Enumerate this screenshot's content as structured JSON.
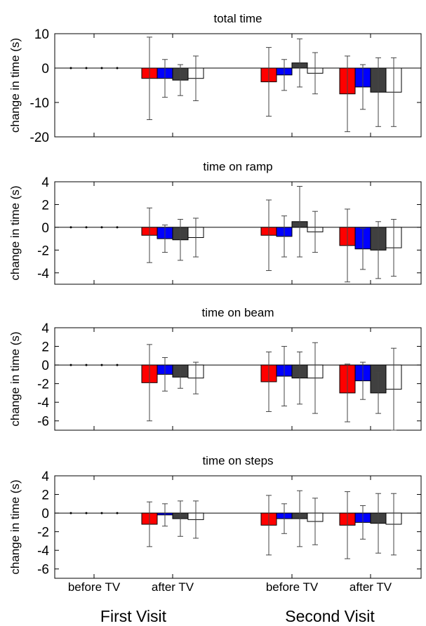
{
  "figure": {
    "x_tick_labels": [
      "before TV",
      "after TV",
      "before TV",
      "after TV"
    ],
    "group_labels": [
      "First Visit",
      "Second Visit"
    ],
    "series_colors": [
      "#ff0000",
      "#0000ff",
      "#404040",
      "#ffffff"
    ]
  },
  "chart_data": [
    {
      "type": "bar",
      "title": "total time",
      "ylabel": "change in time (s)",
      "ylim": [
        -20,
        10
      ],
      "yticks": [
        -20,
        -10,
        0,
        10
      ],
      "categories": [
        "before TV",
        "after TV",
        "before TV",
        "after TV"
      ],
      "series": [
        {
          "values": [
            0,
            -3.0,
            -4.0,
            -7.5
          ],
          "error": [
            0,
            12.0,
            10.0,
            11.0
          ]
        },
        {
          "values": [
            0,
            -3.0,
            -2.0,
            -5.5
          ],
          "error": [
            0,
            5.5,
            4.5,
            6.5
          ]
        },
        {
          "values": [
            0,
            -3.5,
            1.5,
            -7.0
          ],
          "error": [
            0,
            4.5,
            7.0,
            10.0
          ]
        },
        {
          "values": [
            0,
            -3.0,
            -1.5,
            -7.0
          ],
          "error": [
            0,
            6.5,
            6.0,
            10.0
          ]
        }
      ]
    },
    {
      "type": "bar",
      "title": "time on ramp",
      "ylabel": "change in time (s)",
      "ylim": [
        -5,
        4
      ],
      "yticks": [
        -4,
        -2,
        0,
        2,
        4
      ],
      "categories": [
        "before TV",
        "after TV",
        "before TV",
        "after TV"
      ],
      "series": [
        {
          "values": [
            0,
            -0.7,
            -0.7,
            -1.6
          ],
          "error": [
            0,
            2.4,
            3.1,
            3.2
          ]
        },
        {
          "values": [
            0,
            -1.0,
            -0.8,
            -1.9
          ],
          "error": [
            0,
            1.2,
            1.8,
            1.8
          ]
        },
        {
          "values": [
            0,
            -1.1,
            0.5,
            -2.0
          ],
          "error": [
            0,
            1.8,
            3.1,
            2.5
          ]
        },
        {
          "values": [
            0,
            -0.9,
            -0.4,
            -1.8
          ],
          "error": [
            0,
            1.7,
            1.8,
            2.5
          ]
        }
      ]
    },
    {
      "type": "bar",
      "title": "time on beam",
      "ylabel": "change in time (s)",
      "ylim": [
        -7,
        4
      ],
      "yticks": [
        -6,
        -4,
        -2,
        0,
        2,
        4
      ],
      "categories": [
        "before TV",
        "after TV",
        "before TV",
        "after TV"
      ],
      "series": [
        {
          "values": [
            0,
            -1.9,
            -1.8,
            -3.0
          ],
          "error": [
            0,
            4.1,
            3.2,
            3.1
          ]
        },
        {
          "values": [
            0,
            -1.0,
            -1.2,
            -1.7
          ],
          "error": [
            0,
            1.8,
            3.2,
            2.0
          ]
        },
        {
          "values": [
            0,
            -1.3,
            -1.4,
            -3.0
          ],
          "error": [
            0,
            1.2,
            2.8,
            2.2
          ]
        },
        {
          "values": [
            0,
            -1.4,
            -1.4,
            -2.6
          ],
          "error": [
            0,
            1.7,
            3.8,
            4.4
          ]
        }
      ]
    },
    {
      "type": "bar",
      "title": "time on steps",
      "ylabel": "change in time (s)",
      "ylim": [
        -7,
        4
      ],
      "yticks": [
        -6,
        -4,
        -2,
        0,
        2,
        4
      ],
      "categories": [
        "before TV",
        "after TV",
        "before TV",
        "after TV"
      ],
      "series": [
        {
          "values": [
            0,
            -1.2,
            -1.3,
            -1.3
          ],
          "error": [
            0,
            2.4,
            3.2,
            3.6
          ]
        },
        {
          "values": [
            0,
            -0.2,
            -0.6,
            -1.0
          ],
          "error": [
            0,
            1.2,
            1.6,
            1.8
          ]
        },
        {
          "values": [
            0,
            -0.6,
            -0.6,
            -1.1
          ],
          "error": [
            0,
            1.9,
            3.0,
            3.2
          ]
        },
        {
          "values": [
            0,
            -0.7,
            -0.9,
            -1.2
          ],
          "error": [
            0,
            2.0,
            2.5,
            3.3
          ]
        }
      ]
    }
  ]
}
